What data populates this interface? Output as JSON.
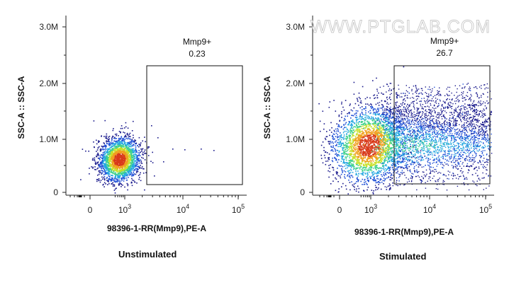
{
  "watermark": "WWW.PTGLAB.COM",
  "chart_data": [
    {
      "type": "scatter",
      "subtype": "flow-cytometry-density-plot",
      "caption": "Unstimulated",
      "xlabel": "98396-1-RR(Mmp9),PE-A",
      "ylabel": "SSC-A :: SSC-A",
      "x_scale": "biexponential",
      "x_ticks": [
        {
          "base": "0",
          "exp": ""
        },
        {
          "base": "10",
          "exp": "3"
        },
        {
          "base": "10",
          "exp": "4"
        },
        {
          "base": "10",
          "exp": "5"
        }
      ],
      "y_ticks": [
        "0",
        "1.0M",
        "2.0M",
        "3.0M"
      ],
      "ylim": [
        0,
        3000000
      ],
      "gate": {
        "name": "Mmp9+",
        "value": "0.23",
        "x_range": [
          2700,
          100000
        ],
        "y_range": [
          150000,
          2300000
        ]
      },
      "population": {
        "center_x": 700,
        "center_y": 650000,
        "density_colormap": [
          "#1a1a8c",
          "#1f4fd6",
          "#22a7e0",
          "#3fd18a",
          "#c8e02a",
          "#f0a020",
          "#d83a1a"
        ]
      }
    },
    {
      "type": "scatter",
      "subtype": "flow-cytometry-density-plot",
      "caption": "Stimulated",
      "xlabel": "98396-1-RR(Mmp9),PE-A",
      "ylabel": "SSC-A :: SSC-A",
      "x_scale": "biexponential",
      "x_ticks": [
        {
          "base": "0",
          "exp": ""
        },
        {
          "base": "10",
          "exp": "3"
        },
        {
          "base": "10",
          "exp": "4"
        },
        {
          "base": "10",
          "exp": "5"
        }
      ],
      "y_ticks": [
        "0",
        "1.0M",
        "2.0M",
        "3.0M"
      ],
      "ylim": [
        0,
        3000000
      ],
      "gate": {
        "name": "Mmp9+",
        "value": "26.7",
        "x_range": [
          2700,
          100000
        ],
        "y_range": [
          150000,
          2300000
        ]
      },
      "population": {
        "center_x": 950,
        "center_y": 850000,
        "density_colormap": [
          "#1a1a8c",
          "#1f4fd6",
          "#22a7e0",
          "#3fd18a",
          "#c8e02a",
          "#f0a020",
          "#d83a1a"
        ]
      }
    }
  ]
}
